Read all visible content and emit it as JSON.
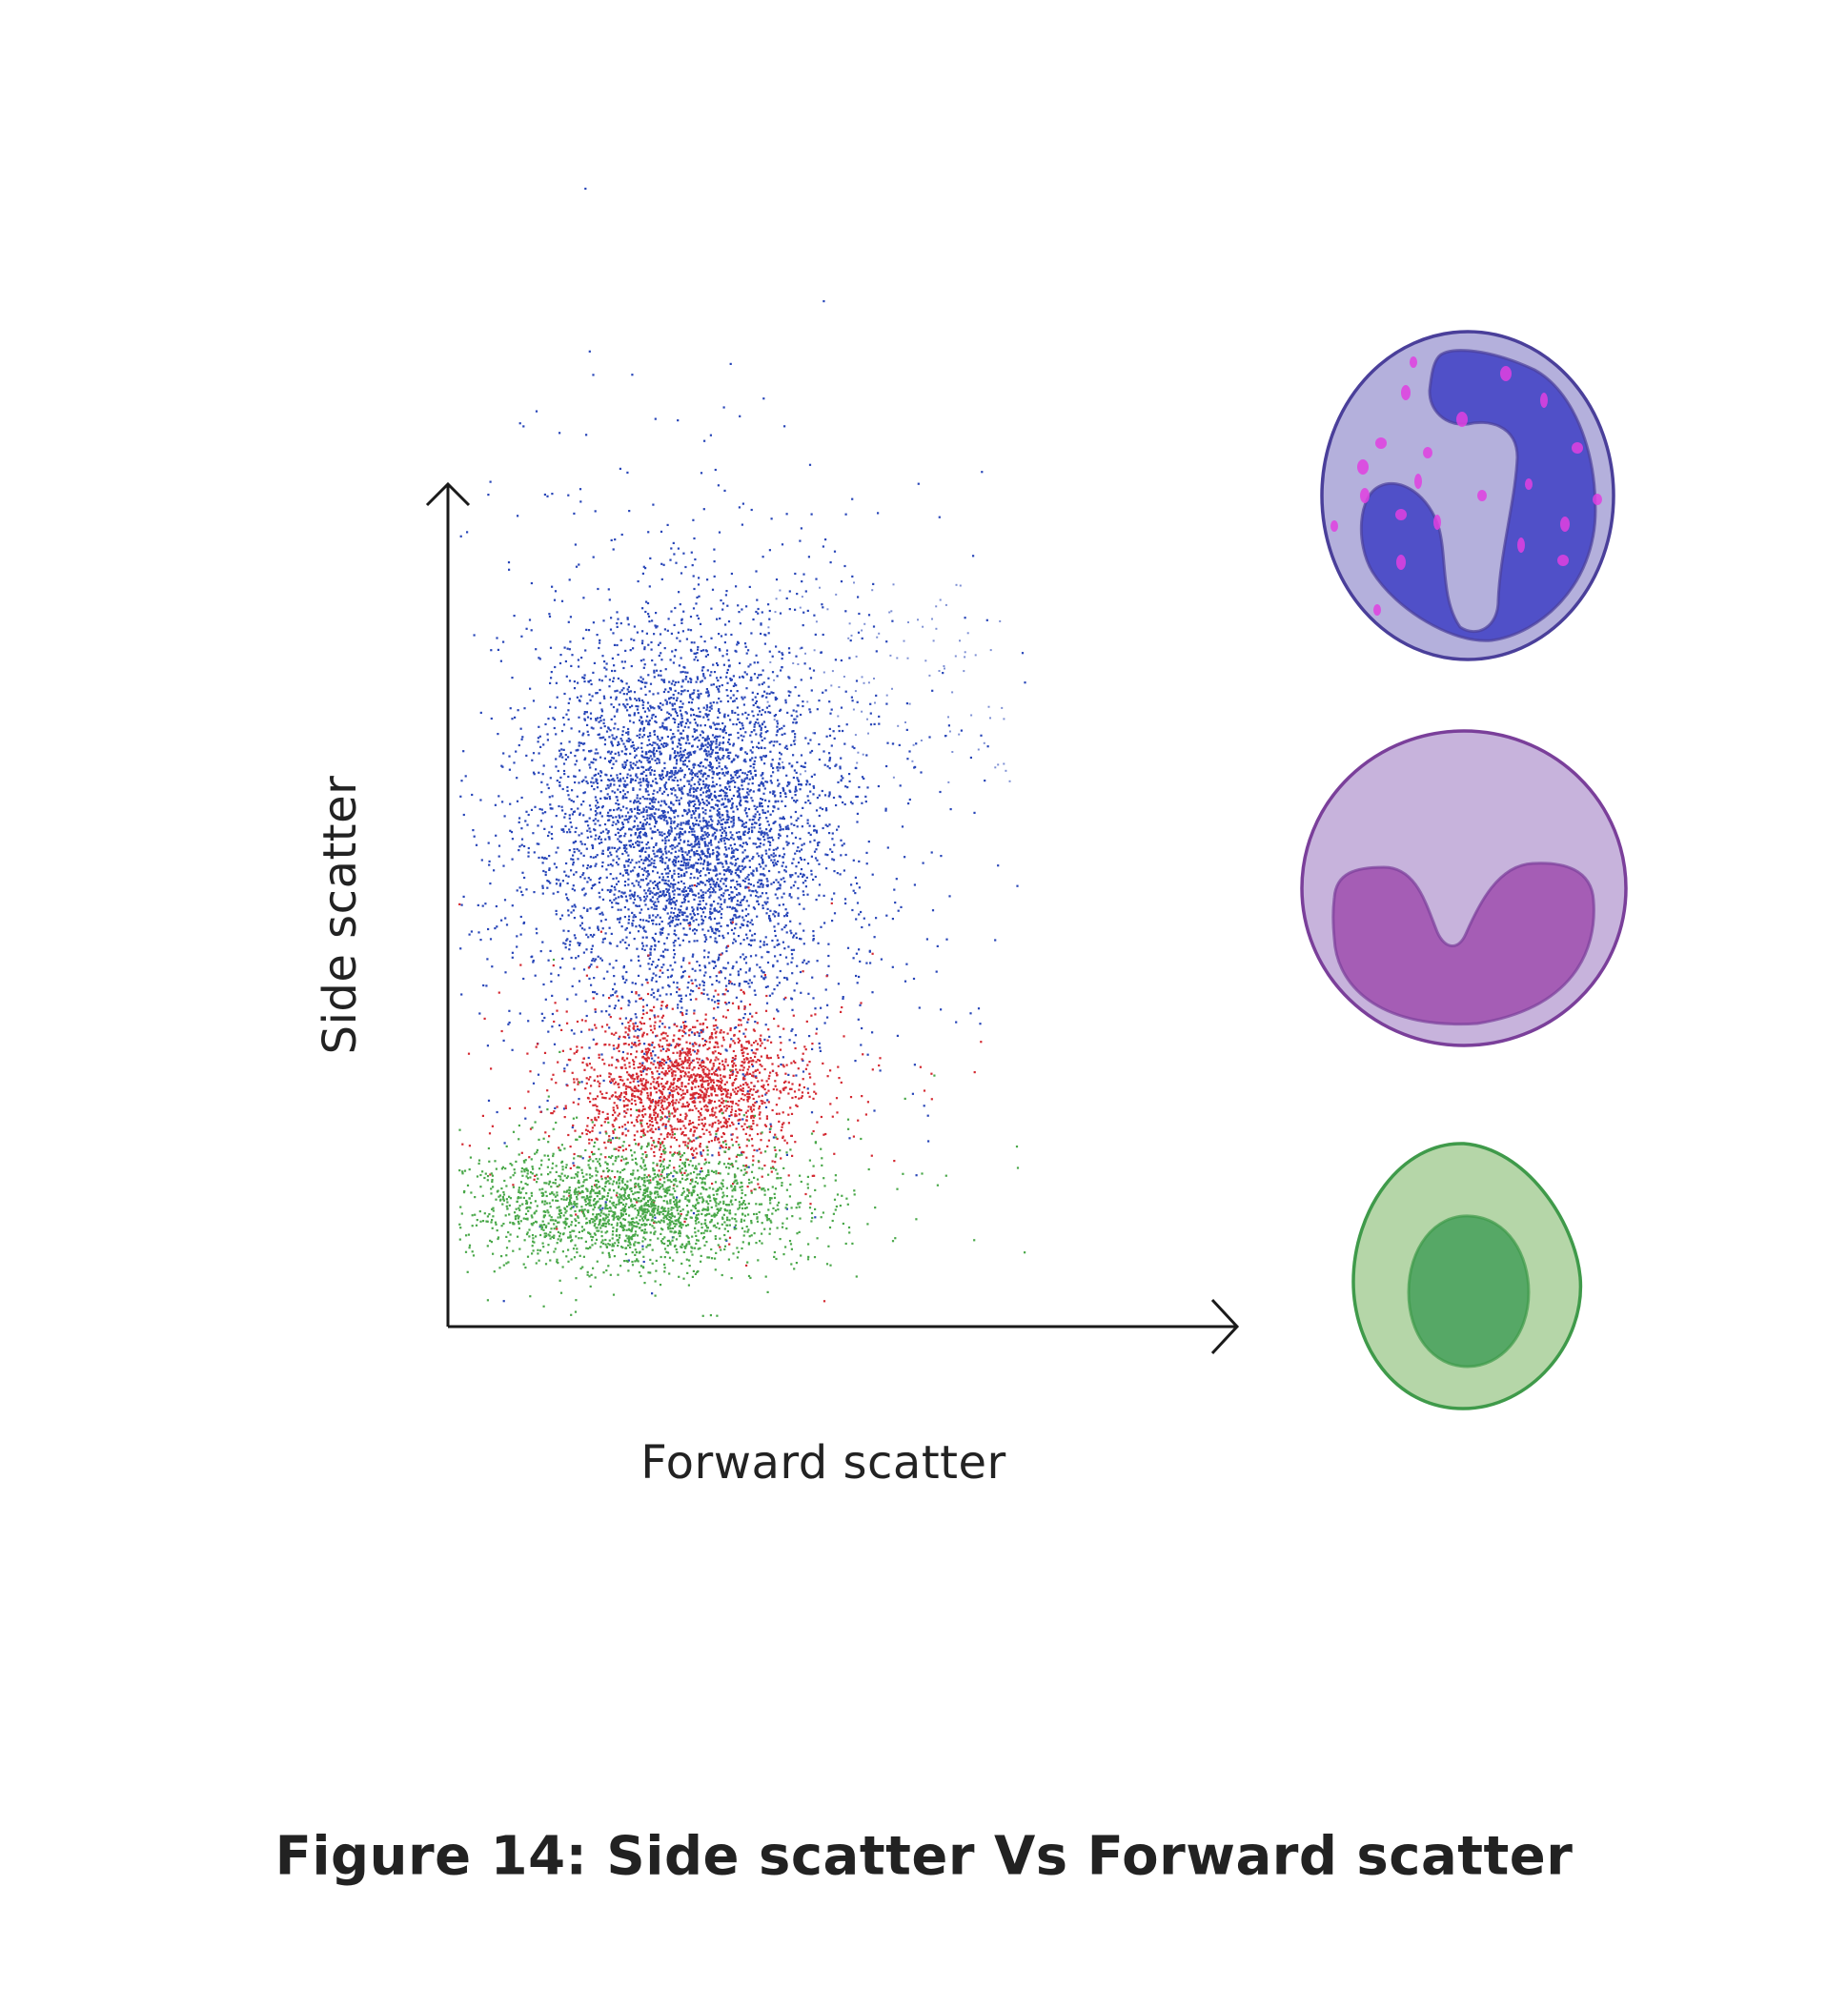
{
  "diagram": {
    "y_axis_label": "Side scatter",
    "x_axis_label": "Forward scatter",
    "caption": "Figure 14: Side scatter Vs Forward scatter",
    "clusters": [
      {
        "name": "blue-cluster",
        "color": "#2846b8"
      },
      {
        "name": "red-cluster",
        "color": "#d42a32"
      },
      {
        "name": "green-cluster",
        "color": "#4aa84a"
      }
    ],
    "cells": [
      {
        "name": "granulocyte-cell-icon",
        "membrane": "#4a3f9a",
        "cytoplasm": "#b4b0dc",
        "nucleus": "#5050c8",
        "granules": "#e040e0"
      },
      {
        "name": "monocyte-cell-icon",
        "membrane": "#7a3f9a",
        "cytoplasm": "#c7b3dc",
        "nucleus": "#a55db5"
      },
      {
        "name": "lymphocyte-cell-icon",
        "membrane": "#3f9a4a",
        "cytoplasm": "#b5d6a8",
        "nucleus": "#56a866"
      }
    ]
  }
}
